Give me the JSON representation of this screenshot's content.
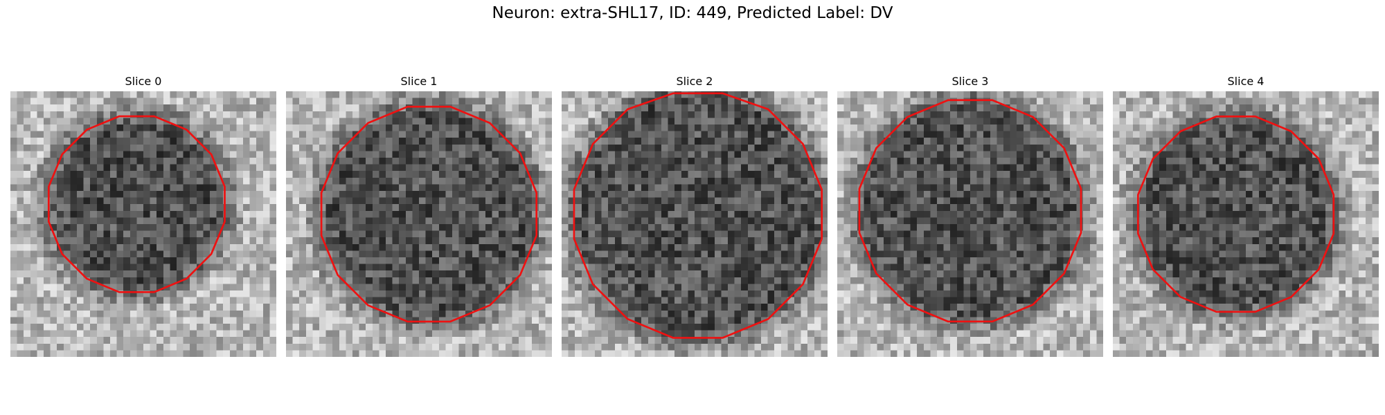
{
  "figure": {
    "title": "Neuron: extra-SHL17, ID: 449, Predicted Label: DV"
  },
  "contour_color": "#ee1111",
  "panels": [
    {
      "title": "Slice 0",
      "center": [
        19.0,
        17.0
      ],
      "radius": 13.5,
      "tone": "darker-blob"
    },
    {
      "title": "Slice 1",
      "center": [
        21.5,
        18.5
      ],
      "radius": 16.5,
      "tone": "darker-blob"
    },
    {
      "title": "Slice 2",
      "center": [
        20.5,
        18.5
      ],
      "radius": 19.0,
      "tone": "darker-blob"
    },
    {
      "title": "Slice 3",
      "center": [
        20.0,
        18.0
      ],
      "radius": 17.0,
      "tone": "darker-blob"
    },
    {
      "title": "Slice 4",
      "center": [
        18.5,
        18.5
      ],
      "radius": 15.0,
      "tone": "darker-blob"
    }
  ]
}
